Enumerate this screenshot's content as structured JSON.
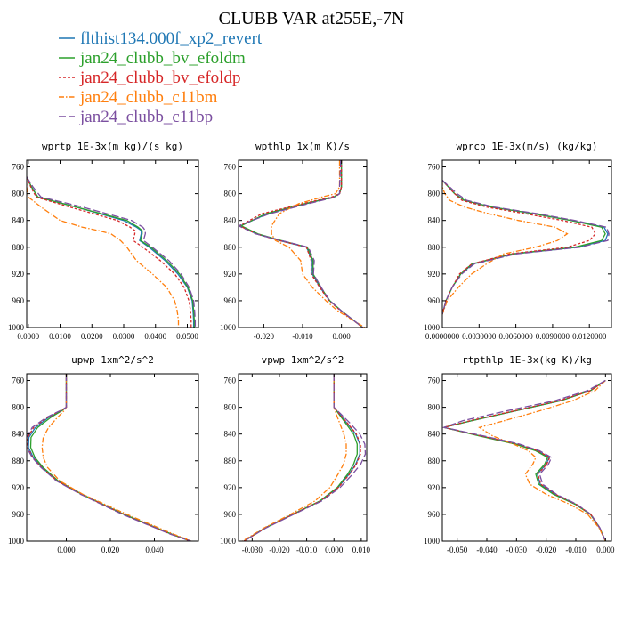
{
  "figure": {
    "title": "CLUBB VAR at255E,-7N",
    "legend": [
      {
        "label": "flthist134.000f_xp2_revert",
        "color": "#1f77b4",
        "dash": ""
      },
      {
        "label": "jan24_clubb_bv_efoldm",
        "color": "#2ca02c",
        "dash": ""
      },
      {
        "label": "jan24_clubb_bv_efoldp",
        "color": "#d62728",
        "dash": "3,2"
      },
      {
        "label": "jan24_clubb_c11bm",
        "color": "#ff7f0e",
        "dash": "6,2,1.5,2"
      },
      {
        "label": "jan24_clubb_c11bp",
        "color": "#7b4fa0",
        "dash": "8,3"
      }
    ]
  },
  "chart_data": [
    {
      "type": "line",
      "title": "wprtp  1E-3x(m kg)/(s kg)",
      "xlim": [
        -0.0005,
        0.0535
      ],
      "ylim": [
        1000,
        750
      ],
      "y_ticks": [
        760,
        800,
        840,
        880,
        920,
        960,
        1000
      ],
      "x_ticks": [
        0.0,
        0.01,
        0.02,
        0.03,
        0.04,
        0.05
      ],
      "x_tick_labels": [
        "0.0000",
        "0.0100",
        "0.0200",
        "0.0300",
        "0.0400",
        "0.0500"
      ],
      "y": [
        775,
        790,
        805,
        820,
        840,
        850,
        855,
        860,
        870,
        880,
        900,
        920,
        940,
        960,
        975,
        990,
        1000
      ],
      "series": [
        {
          "values": [
            -0.0005,
            0.001,
            0.003,
            0.015,
            0.03,
            0.034,
            0.0355,
            0.0355,
            0.035,
            0.038,
            0.043,
            0.047,
            0.05,
            0.0515,
            0.0518,
            0.052,
            0.052
          ]
        },
        {
          "values": [
            -0.0005,
            0.001,
            0.003,
            0.015,
            0.031,
            0.0345,
            0.0358,
            0.0358,
            0.0353,
            0.0385,
            0.0435,
            0.0475,
            0.0502,
            0.0517,
            0.052,
            0.0522,
            0.0522
          ]
        },
        {
          "values": [
            -0.0005,
            0.0008,
            0.0025,
            0.013,
            0.028,
            0.032,
            0.0335,
            0.0335,
            0.033,
            0.036,
            0.0415,
            0.046,
            0.049,
            0.0505,
            0.051,
            0.0512,
            0.0512
          ]
        },
        {
          "values": [
            -0.0005,
            -0.0005,
            0.0,
            0.004,
            0.01,
            0.017,
            0.022,
            0.026,
            0.029,
            0.031,
            0.034,
            0.039,
            0.0435,
            0.046,
            0.0468,
            0.0472,
            0.0472
          ]
        },
        {
          "values": [
            -0.0005,
            0.0015,
            0.004,
            0.017,
            0.0325,
            0.036,
            0.0368,
            0.0368,
            0.0362,
            0.039,
            0.0442,
            0.048,
            0.0506,
            0.052,
            0.0523,
            0.0525,
            0.0525
          ]
        }
      ]
    },
    {
      "type": "line",
      "title": "wpthlp  1x(m K)/s",
      "xlim": [
        -0.0265,
        0.0065
      ],
      "ylim": [
        1000,
        750
      ],
      "y_ticks": [
        760,
        800,
        840,
        880,
        920,
        960,
        1000
      ],
      "x_ticks": [
        -0.02,
        -0.01,
        0.0
      ],
      "x_tick_labels": [
        "-0.020",
        "-0.010",
        "0.000"
      ],
      "y": [
        750,
        790,
        800,
        805,
        815,
        830,
        848,
        860,
        870,
        880,
        900,
        920,
        940,
        960,
        975,
        1000
      ],
      "series": [
        {
          "values": [
            0.0,
            0.0,
            -0.0005,
            -0.002,
            -0.009,
            -0.019,
            -0.026,
            -0.022,
            -0.016,
            -0.009,
            -0.0075,
            -0.0075,
            -0.0055,
            -0.003,
            0.0,
            0.0055
          ]
        },
        {
          "values": [
            0.0,
            0.0,
            -0.0005,
            -0.002,
            -0.0095,
            -0.0195,
            -0.0258,
            -0.0215,
            -0.0155,
            -0.0088,
            -0.0073,
            -0.0073,
            -0.0053,
            -0.003,
            0.0,
            0.0055
          ]
        },
        {
          "values": [
            0.0,
            0.0,
            -0.0005,
            -0.0025,
            -0.01,
            -0.0205,
            -0.0262,
            -0.022,
            -0.016,
            -0.009,
            -0.0078,
            -0.0078,
            -0.0056,
            -0.0032,
            -0.0002,
            0.0055
          ]
        },
        {
          "values": [
            -0.0005,
            -0.0005,
            -0.0015,
            -0.005,
            -0.011,
            -0.016,
            -0.018,
            -0.018,
            -0.017,
            -0.0135,
            -0.0105,
            -0.01,
            -0.0075,
            -0.004,
            -0.001,
            0.006
          ]
        },
        {
          "values": [
            -0.0002,
            -0.0005,
            -0.0005,
            -0.0015,
            -0.0085,
            -0.0185,
            -0.0265,
            -0.022,
            -0.0155,
            -0.0085,
            -0.007,
            -0.0072,
            -0.0052,
            -0.003,
            0.0,
            0.0055
          ]
        }
      ]
    },
    {
      "type": "line",
      "title": "wprcp  1E-3x(m/s) (kg/kg)",
      "xlim": [
        0.0,
        0.0138
      ],
      "ylim": [
        1000,
        750
      ],
      "y_ticks": [
        760,
        800,
        840,
        880,
        920,
        960,
        1000
      ],
      "x_ticks": [
        0.0,
        0.003,
        0.006,
        0.009,
        0.012
      ],
      "x_tick_labels": [
        "0.0000000",
        "0.0030000",
        "0.0060000",
        "0.0090000",
        "0.0120000"
      ],
      "y": [
        780,
        790,
        800,
        810,
        820,
        830,
        840,
        850,
        860,
        870,
        880,
        890,
        905,
        920,
        940,
        960,
        980
      ],
      "series": [
        {
          "values": [
            0.0,
            0.0005,
            0.001,
            0.0018,
            0.004,
            0.0075,
            0.0105,
            0.0132,
            0.0135,
            0.0133,
            0.011,
            0.0058,
            0.0025,
            0.0015,
            0.0008,
            0.0003,
            0.0
          ]
        },
        {
          "values": [
            0.0,
            0.0005,
            0.001,
            0.0018,
            0.004,
            0.0075,
            0.0105,
            0.013,
            0.0133,
            0.013,
            0.0108,
            0.0057,
            0.0024,
            0.0015,
            0.0008,
            0.0003,
            0.0
          ]
        },
        {
          "values": [
            0.0,
            0.0005,
            0.001,
            0.0016,
            0.0036,
            0.0068,
            0.0098,
            0.0122,
            0.0125,
            0.012,
            0.0102,
            0.0055,
            0.0024,
            0.0014,
            0.0008,
            0.0003,
            0.0
          ]
        },
        {
          "values": [
            0.0,
            0.0,
            0.0002,
            0.0006,
            0.0018,
            0.0038,
            0.0062,
            0.0092,
            0.0102,
            0.0094,
            0.0076,
            0.005,
            0.0036,
            0.0024,
            0.0013,
            0.0004,
            0.0
          ]
        },
        {
          "values": [
            0.0,
            0.0006,
            0.0012,
            0.002,
            0.0042,
            0.0078,
            0.0108,
            0.0134,
            0.0136,
            0.0135,
            0.0112,
            0.006,
            0.0026,
            0.0016,
            0.0008,
            0.0003,
            0.0
          ]
        }
      ]
    },
    {
      "type": "line",
      "title": "upwp  1xm^2/s^2",
      "xlim": [
        -0.018,
        0.06
      ],
      "ylim": [
        1000,
        750
      ],
      "y_ticks": [
        760,
        800,
        840,
        880,
        920,
        960,
        1000
      ],
      "x_ticks": [
        0.0,
        0.02,
        0.04
      ],
      "x_tick_labels": [
        "0.000",
        "0.020",
        "0.040"
      ],
      "y": [
        750,
        800,
        805,
        815,
        830,
        845,
        860,
        875,
        890,
        910,
        930,
        960,
        990,
        1000
      ],
      "series": [
        {
          "values": [
            0.0,
            0.0,
            -0.002,
            -0.008,
            -0.014,
            -0.017,
            -0.0172,
            -0.015,
            -0.011,
            -0.004,
            0.007,
            0.026,
            0.048,
            0.0565
          ]
        },
        {
          "values": [
            0.0,
            0.0,
            -0.002,
            -0.007,
            -0.013,
            -0.016,
            -0.0162,
            -0.0143,
            -0.0105,
            -0.0037,
            0.0072,
            0.0262,
            0.0482,
            0.0565
          ]
        },
        {
          "values": [
            0.0,
            0.0,
            -0.0025,
            -0.0085,
            -0.0148,
            -0.0175,
            -0.0176,
            -0.0152,
            -0.0112,
            -0.0042,
            0.0068,
            0.0258,
            0.0478,
            0.0565
          ]
        },
        {
          "values": [
            0.0,
            0.0,
            -0.001,
            -0.004,
            -0.008,
            -0.0105,
            -0.011,
            -0.0105,
            -0.0085,
            -0.003,
            0.0075,
            0.0275,
            0.049,
            0.057
          ]
        },
        {
          "values": [
            0.0,
            0.0,
            -0.0028,
            -0.009,
            -0.0155,
            -0.018,
            -0.018,
            -0.0155,
            -0.0115,
            -0.0045,
            0.0065,
            0.0255,
            0.0476,
            0.0565
          ]
        }
      ]
    },
    {
      "type": "line",
      "title": "vpwp  1xm^2/s^2",
      "xlim": [
        -0.035,
        0.012
      ],
      "ylim": [
        1000,
        750
      ],
      "y_ticks": [
        760,
        800,
        840,
        880,
        920,
        960,
        1000
      ],
      "x_ticks": [
        -0.03,
        -0.02,
        -0.01,
        0.0,
        0.01
      ],
      "x_tick_labels": [
        "-0.030",
        "-0.020",
        "-0.010",
        "0.000",
        "0.010"
      ],
      "y": [
        750,
        800,
        810,
        825,
        840,
        855,
        870,
        885,
        900,
        920,
        940,
        960,
        980,
        1000
      ],
      "series": [
        {
          "values": [
            0.0,
            0.0,
            0.002,
            0.005,
            0.008,
            0.0095,
            0.0095,
            0.008,
            0.0055,
            0.0015,
            -0.005,
            -0.015,
            -0.025,
            -0.033
          ]
        },
        {
          "values": [
            0.0,
            0.0,
            0.0018,
            0.0045,
            0.0072,
            0.0085,
            0.0085,
            0.0072,
            0.005,
            0.0012,
            -0.0052,
            -0.0152,
            -0.0252,
            -0.033
          ]
        },
        {
          "values": [
            0.0,
            0.0,
            0.002,
            0.0052,
            0.0082,
            0.0097,
            0.0097,
            0.0082,
            0.0057,
            0.0016,
            -0.005,
            -0.015,
            -0.025,
            -0.033
          ]
        },
        {
          "values": [
            0.0,
            0.0,
            0.0008,
            0.0022,
            0.0036,
            0.0045,
            0.0045,
            0.0035,
            0.0015,
            -0.0015,
            -0.007,
            -0.016,
            -0.0255,
            -0.0335
          ]
        },
        {
          "values": [
            0.0,
            0.0,
            0.0025,
            0.0062,
            0.0095,
            0.0113,
            0.0115,
            0.0098,
            0.0068,
            0.0022,
            -0.0045,
            -0.0148,
            -0.0248,
            -0.033
          ]
        }
      ]
    },
    {
      "type": "line",
      "title": "rtpthlp  1E-3x(kg K)/kg",
      "xlim": [
        -0.055,
        0.002
      ],
      "ylim": [
        1000,
        750
      ],
      "y_ticks": [
        760,
        800,
        840,
        880,
        920,
        960,
        1000
      ],
      "x_ticks": [
        -0.05,
        -0.04,
        -0.03,
        -0.02,
        -0.01,
        0.0
      ],
      "x_tick_labels": [
        "-0.050",
        "-0.040",
        "-0.030",
        "-0.020",
        "-0.010",
        "0.000"
      ],
      "y": [
        760,
        775,
        790,
        805,
        820,
        830,
        843,
        855,
        865,
        875,
        885,
        900,
        915,
        930,
        945,
        960,
        980,
        1000
      ],
      "series": [
        {
          "values": [
            0.0,
            -0.005,
            -0.015,
            -0.03,
            -0.045,
            -0.0545,
            -0.042,
            -0.03,
            -0.023,
            -0.019,
            -0.02,
            -0.023,
            -0.022,
            -0.017,
            -0.01,
            -0.005,
            -0.002,
            0.0
          ]
        },
        {
          "values": [
            0.0,
            -0.005,
            -0.015,
            -0.03,
            -0.045,
            -0.0545,
            -0.0425,
            -0.0305,
            -0.0235,
            -0.0195,
            -0.0205,
            -0.0235,
            -0.0225,
            -0.0175,
            -0.0102,
            -0.0051,
            -0.002,
            0.0
          ]
        },
        {
          "values": [
            0.0,
            -0.005,
            -0.0155,
            -0.0305,
            -0.0455,
            -0.0545,
            -0.0418,
            -0.0295,
            -0.0228,
            -0.0188,
            -0.0198,
            -0.0228,
            -0.0218,
            -0.0168,
            -0.0099,
            -0.005,
            -0.002,
            0.0
          ]
        },
        {
          "values": [
            0.0,
            -0.0035,
            -0.011,
            -0.022,
            -0.034,
            -0.0425,
            -0.038,
            -0.031,
            -0.026,
            -0.0235,
            -0.0245,
            -0.027,
            -0.0255,
            -0.02,
            -0.012,
            -0.006,
            -0.0022,
            0.0
          ]
        },
        {
          "values": [
            0.0,
            -0.006,
            -0.017,
            -0.033,
            -0.048,
            -0.0545,
            -0.041,
            -0.029,
            -0.0222,
            -0.0182,
            -0.0192,
            -0.0222,
            -0.0212,
            -0.0165,
            -0.0097,
            -0.0049,
            -0.0019,
            0.0
          ]
        }
      ]
    }
  ]
}
